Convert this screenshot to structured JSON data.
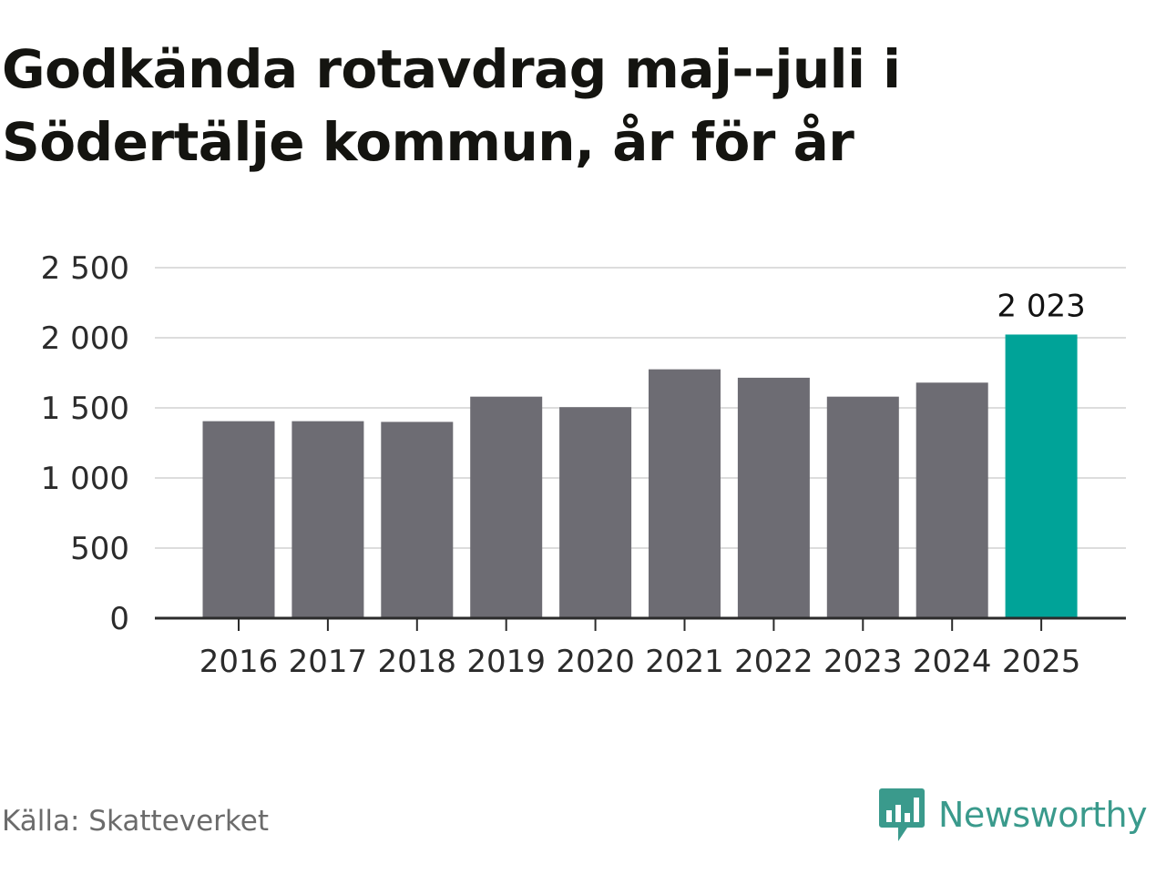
{
  "title": "Godkända rotavdrag maj--juli i Södertälje kommun, år för år",
  "source": "Källa: Skatteverket",
  "brand": {
    "name": "Newsworthy",
    "icon": "newsworthy-logo-icon",
    "color": "#3a9a8c"
  },
  "colors": {
    "bar": "#6d6c73",
    "highlight": "#00a398",
    "grid": "#dddddd",
    "axis": "#2b2b2b"
  },
  "chart_data": {
    "type": "bar",
    "categories": [
      "2016",
      "2017",
      "2018",
      "2019",
      "2020",
      "2021",
      "2022",
      "2023",
      "2024",
      "2025"
    ],
    "values": [
      1405,
      1405,
      1400,
      1580,
      1505,
      1775,
      1715,
      1580,
      1680,
      2023
    ],
    "highlight_index": 9,
    "data_labels": [
      {
        "index": 9,
        "text": "2 023"
      }
    ],
    "y_ticks": [
      {
        "value": 0,
        "label": "0"
      },
      {
        "value": 500,
        "label": "500"
      },
      {
        "value": 1000,
        "label": "1 000"
      },
      {
        "value": 1500,
        "label": "1 500"
      },
      {
        "value": 2000,
        "label": "2 000"
      },
      {
        "value": 2500,
        "label": "2 500"
      }
    ],
    "ylim": [
      0,
      2500
    ],
    "grid": true,
    "legend": "none",
    "title": "Godkända rotavdrag maj--juli i Södertälje kommun, år för år",
    "xlabel": "",
    "ylabel": ""
  }
}
